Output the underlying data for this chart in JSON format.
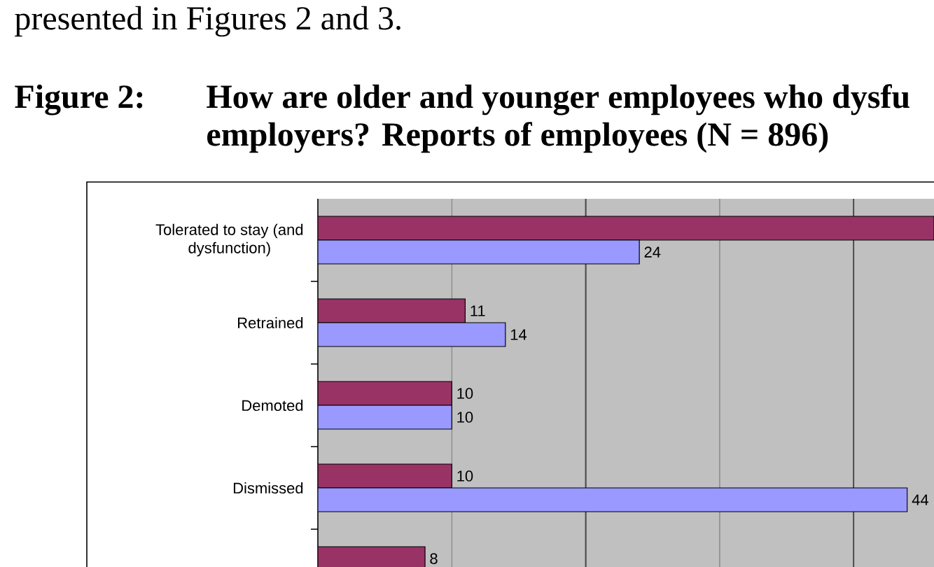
{
  "chart_data": {
    "type": "bar",
    "orientation": "horizontal",
    "title": "How are older and younger employees who dysfu employers? Reports of employees (N = 896)",
    "annotations": [
      "presented in Figures 2 and 3.",
      "Figure 2:"
    ],
    "categories": [
      "Tolerated to stay (and dysfunction)",
      "Retrained",
      "Demoted",
      "Dismissed",
      null
    ],
    "series": [
      {
        "color": "#993366",
        "values": [
          46,
          11,
          10,
          10,
          8
        ],
        "value_labels": [
          null,
          "11",
          "10",
          "10",
          "8"
        ]
      },
      {
        "color": "#9999ff",
        "values": [
          24,
          14,
          10,
          44,
          null
        ],
        "value_labels": [
          "24",
          "14",
          "10",
          "44",
          null
        ]
      }
    ],
    "xlim": [
      0,
      46
    ],
    "xticks": [
      {
        "value": 10,
        "label": null
      },
      {
        "value": 20,
        "label": null
      },
      {
        "value": 30,
        "label": null
      },
      {
        "value": 40,
        "label": null
      }
    ],
    "grid": "x",
    "tick_labels": "y"
  }
}
